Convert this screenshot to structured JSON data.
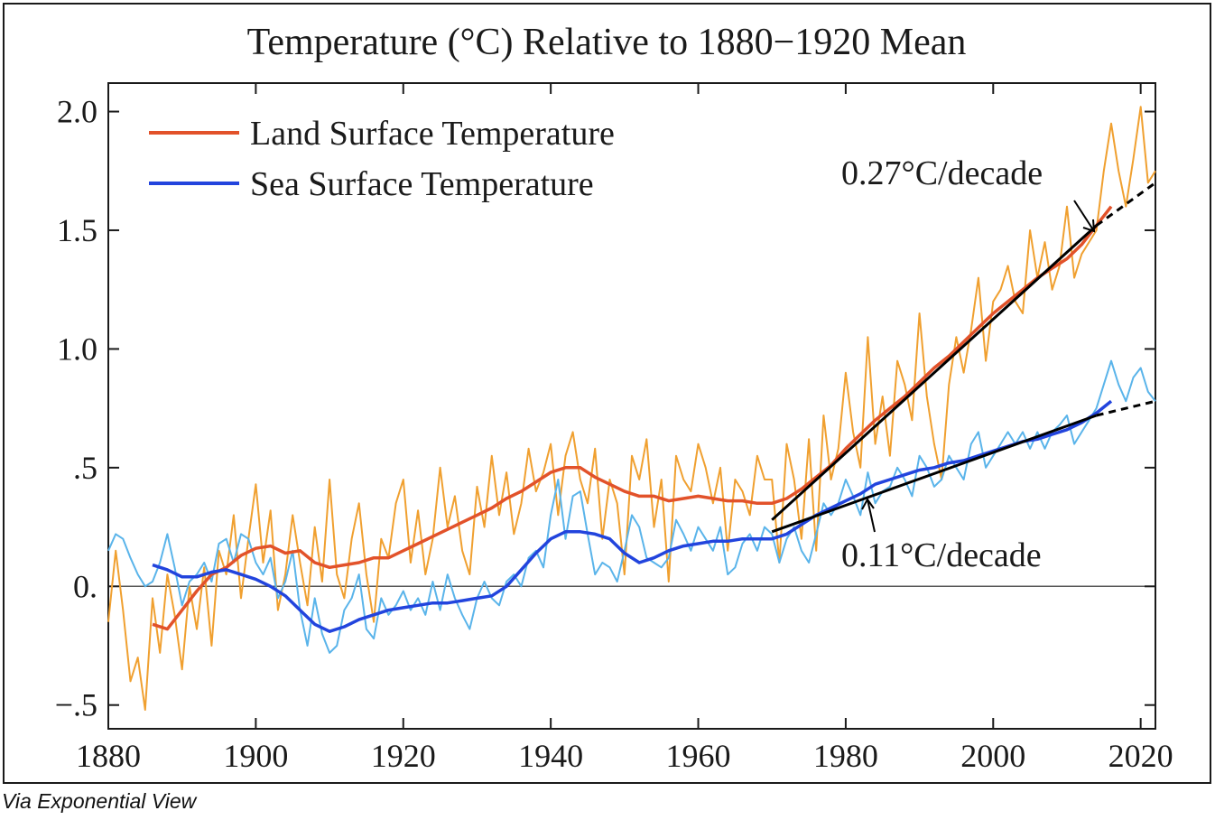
{
  "caption": "Via Exponential View",
  "chart_data": {
    "type": "line",
    "title": "Temperature (°C) Relative to 1880−1920 Mean",
    "xlabel": "",
    "ylabel": "",
    "xlim": [
      1880,
      2022
    ],
    "ylim": [
      -0.6,
      2.12
    ],
    "x_ticks": [
      1880,
      1900,
      1920,
      1940,
      1960,
      1980,
      2000,
      2020
    ],
    "x_tick_labels": [
      "1880",
      "1900",
      "1920",
      "1940",
      "1960",
      "1980",
      "2000",
      "2020"
    ],
    "y_ticks": [
      2.0,
      1.5,
      1.0,
      0.5,
      0.0,
      -0.5
    ],
    "y_tick_labels": [
      "2.0",
      "1.5",
      "1.0",
      ".5",
      "0.",
      "−.5"
    ],
    "legend_position": "top-left",
    "legend": [
      {
        "label": "Land Surface Temperature",
        "color": "#e2522a"
      },
      {
        "label": "Sea Surface Temperature",
        "color": "#2244dd"
      }
    ],
    "colors": {
      "land_monthly": "#f0a030",
      "land_smooth": "#e2522a",
      "sea_monthly": "#5ab4ea",
      "sea_smooth": "#2244dd",
      "trend": "#000000",
      "zero_line": "#555555"
    },
    "series": [
      {
        "name": "Land Surface Temperature (monthly/annual)",
        "color": "#f0a030",
        "x": [
          1880,
          1881,
          1882,
          1883,
          1884,
          1885,
          1886,
          1887,
          1888,
          1889,
          1890,
          1891,
          1892,
          1893,
          1894,
          1895,
          1896,
          1897,
          1898,
          1899,
          1900,
          1901,
          1902,
          1903,
          1904,
          1905,
          1906,
          1907,
          1908,
          1909,
          1910,
          1911,
          1912,
          1913,
          1914,
          1915,
          1916,
          1917,
          1918,
          1919,
          1920,
          1921,
          1922,
          1923,
          1924,
          1925,
          1926,
          1927,
          1928,
          1929,
          1930,
          1931,
          1932,
          1933,
          1934,
          1935,
          1936,
          1937,
          1938,
          1939,
          1940,
          1941,
          1942,
          1943,
          1944,
          1945,
          1946,
          1947,
          1948,
          1949,
          1950,
          1951,
          1952,
          1953,
          1954,
          1955,
          1956,
          1957,
          1958,
          1959,
          1960,
          1961,
          1962,
          1963,
          1964,
          1965,
          1966,
          1967,
          1968,
          1969,
          1970,
          1971,
          1972,
          1973,
          1974,
          1975,
          1976,
          1977,
          1978,
          1979,
          1980,
          1981,
          1982,
          1983,
          1984,
          1985,
          1986,
          1987,
          1988,
          1989,
          1990,
          1991,
          1992,
          1993,
          1994,
          1995,
          1996,
          1997,
          1998,
          1999,
          2000,
          2001,
          2002,
          2003,
          2004,
          2005,
          2006,
          2007,
          2008,
          2009,
          2010,
          2011,
          2012,
          2013,
          2014,
          2015,
          2016,
          2017,
          2018,
          2019,
          2020,
          2021,
          2022
        ],
        "values": [
          -0.15,
          0.15,
          -0.1,
          -0.4,
          -0.3,
          -0.52,
          -0.05,
          -0.28,
          0.05,
          -0.12,
          -0.35,
          0.0,
          -0.18,
          0.08,
          -0.25,
          0.15,
          0.05,
          0.3,
          -0.05,
          0.2,
          0.43,
          0.1,
          0.32,
          -0.1,
          0.05,
          0.3,
          0.1,
          -0.08,
          0.25,
          0.02,
          0.45,
          0.05,
          -0.05,
          0.2,
          0.35,
          0.05,
          -0.15,
          0.2,
          0.12,
          0.35,
          0.45,
          0.1,
          0.32,
          0.05,
          0.2,
          0.5,
          0.25,
          0.38,
          0.15,
          0.05,
          0.42,
          0.25,
          0.55,
          0.3,
          0.48,
          0.22,
          0.35,
          0.58,
          0.4,
          0.48,
          0.6,
          0.3,
          0.55,
          0.65,
          0.45,
          0.35,
          0.58,
          0.2,
          0.45,
          0.35,
          0.05,
          0.55,
          0.45,
          0.62,
          0.25,
          0.45,
          0.02,
          0.55,
          0.45,
          0.4,
          0.6,
          0.5,
          0.35,
          0.5,
          0.15,
          0.45,
          0.4,
          0.3,
          0.55,
          0.45,
          0.45,
          0.1,
          0.6,
          0.45,
          0.2,
          0.62,
          0.15,
          0.72,
          0.45,
          0.58,
          0.9,
          0.65,
          0.5,
          1.05,
          0.6,
          0.8,
          0.55,
          0.95,
          0.85,
          0.7,
          1.15,
          0.8,
          0.6,
          0.45,
          0.85,
          1.05,
          0.9,
          1.08,
          1.3,
          0.95,
          1.2,
          1.25,
          1.35,
          1.2,
          1.15,
          1.5,
          1.3,
          1.45,
          1.25,
          1.35,
          1.6,
          1.3,
          1.4,
          1.45,
          1.5,
          1.75,
          1.95,
          1.75,
          1.6,
          1.8,
          2.02,
          1.7,
          1.75
        ]
      },
      {
        "name": "Land Surface Temperature",
        "color": "#e2522a",
        "x": [
          1886,
          1888,
          1890,
          1892,
          1894,
          1896,
          1898,
          1900,
          1902,
          1904,
          1906,
          1908,
          1910,
          1912,
          1914,
          1916,
          1918,
          1920,
          1922,
          1924,
          1926,
          1928,
          1930,
          1932,
          1934,
          1936,
          1938,
          1940,
          1942,
          1944,
          1946,
          1948,
          1950,
          1952,
          1954,
          1956,
          1958,
          1960,
          1962,
          1964,
          1966,
          1968,
          1970,
          1972,
          1974,
          1976,
          1978,
          1980,
          1982,
          1984,
          1986,
          1988,
          1990,
          1992,
          1994,
          1996,
          1998,
          2000,
          2002,
          2004,
          2006,
          2008,
          2010,
          2012,
          2014,
          2016
        ],
        "values": [
          -0.16,
          -0.18,
          -0.1,
          -0.02,
          0.05,
          0.08,
          0.13,
          0.16,
          0.17,
          0.14,
          0.15,
          0.1,
          0.08,
          0.09,
          0.1,
          0.12,
          0.12,
          0.15,
          0.18,
          0.21,
          0.24,
          0.27,
          0.3,
          0.33,
          0.37,
          0.4,
          0.44,
          0.48,
          0.5,
          0.5,
          0.46,
          0.43,
          0.4,
          0.38,
          0.38,
          0.36,
          0.37,
          0.38,
          0.37,
          0.36,
          0.36,
          0.35,
          0.35,
          0.37,
          0.41,
          0.46,
          0.51,
          0.58,
          0.64,
          0.7,
          0.75,
          0.8,
          0.86,
          0.92,
          0.97,
          1.03,
          1.09,
          1.15,
          1.2,
          1.25,
          1.3,
          1.34,
          1.38,
          1.44,
          1.52,
          1.6
        ]
      },
      {
        "name": "Sea Surface Temperature (monthly/annual)",
        "color": "#5ab4ea",
        "x": [
          1880,
          1881,
          1882,
          1883,
          1884,
          1885,
          1886,
          1887,
          1888,
          1889,
          1890,
          1891,
          1892,
          1893,
          1894,
          1895,
          1896,
          1897,
          1898,
          1899,
          1900,
          1901,
          1902,
          1903,
          1904,
          1905,
          1906,
          1907,
          1908,
          1909,
          1910,
          1911,
          1912,
          1913,
          1914,
          1915,
          1916,
          1917,
          1918,
          1919,
          1920,
          1921,
          1922,
          1923,
          1924,
          1925,
          1926,
          1927,
          1928,
          1929,
          1930,
          1931,
          1932,
          1933,
          1934,
          1935,
          1936,
          1937,
          1938,
          1939,
          1940,
          1941,
          1942,
          1943,
          1944,
          1945,
          1946,
          1947,
          1948,
          1949,
          1950,
          1951,
          1952,
          1953,
          1954,
          1955,
          1956,
          1957,
          1958,
          1959,
          1960,
          1961,
          1962,
          1963,
          1964,
          1965,
          1966,
          1967,
          1968,
          1969,
          1970,
          1971,
          1972,
          1973,
          1974,
          1975,
          1976,
          1977,
          1978,
          1979,
          1980,
          1981,
          1982,
          1983,
          1984,
          1985,
          1986,
          1987,
          1988,
          1989,
          1990,
          1991,
          1992,
          1993,
          1994,
          1995,
          1996,
          1997,
          1998,
          1999,
          2000,
          2001,
          2002,
          2003,
          2004,
          2005,
          2006,
          2007,
          2008,
          2009,
          2010,
          2011,
          2012,
          2013,
          2014,
          2015,
          2016,
          2017,
          2018,
          2019,
          2020,
          2021,
          2022
        ],
        "values": [
          0.15,
          0.22,
          0.2,
          0.12,
          0.05,
          0.0,
          0.02,
          0.1,
          0.22,
          0.08,
          -0.08,
          0.02,
          0.05,
          0.1,
          0.02,
          0.18,
          0.2,
          0.1,
          0.22,
          0.2,
          0.1,
          0.05,
          0.12,
          -0.05,
          0.02,
          0.15,
          -0.1,
          -0.25,
          -0.05,
          -0.2,
          -0.28,
          -0.25,
          -0.1,
          -0.05,
          0.05,
          -0.18,
          -0.22,
          -0.05,
          -0.12,
          -0.08,
          -0.02,
          -0.1,
          -0.05,
          -0.12,
          0.02,
          -0.1,
          0.05,
          -0.05,
          -0.12,
          -0.18,
          -0.05,
          0.02,
          -0.05,
          -0.08,
          0.02,
          0.05,
          0.0,
          0.12,
          0.15,
          0.08,
          0.3,
          0.45,
          0.2,
          0.38,
          0.4,
          0.22,
          0.05,
          0.1,
          0.08,
          0.02,
          0.15,
          0.3,
          0.25,
          0.12,
          0.1,
          0.08,
          0.12,
          0.28,
          0.22,
          0.15,
          0.25,
          0.2,
          0.15,
          0.25,
          0.05,
          0.08,
          0.18,
          0.22,
          0.15,
          0.25,
          0.22,
          0.1,
          0.2,
          0.25,
          0.15,
          0.1,
          0.22,
          0.35,
          0.3,
          0.35,
          0.45,
          0.38,
          0.3,
          0.48,
          0.35,
          0.4,
          0.42,
          0.5,
          0.45,
          0.38,
          0.55,
          0.5,
          0.42,
          0.45,
          0.55,
          0.5,
          0.45,
          0.6,
          0.65,
          0.5,
          0.55,
          0.6,
          0.65,
          0.6,
          0.65,
          0.58,
          0.65,
          0.58,
          0.65,
          0.68,
          0.72,
          0.6,
          0.65,
          0.7,
          0.75,
          0.85,
          0.95,
          0.85,
          0.78,
          0.88,
          0.92,
          0.82,
          0.78
        ]
      },
      {
        "name": "Sea Surface Temperature",
        "color": "#2244dd",
        "x": [
          1886,
          1888,
          1890,
          1892,
          1894,
          1896,
          1898,
          1900,
          1902,
          1904,
          1906,
          1908,
          1910,
          1912,
          1914,
          1916,
          1918,
          1920,
          1922,
          1924,
          1926,
          1928,
          1930,
          1932,
          1934,
          1936,
          1938,
          1940,
          1942,
          1944,
          1946,
          1948,
          1950,
          1952,
          1954,
          1956,
          1958,
          1960,
          1962,
          1964,
          1966,
          1968,
          1970,
          1972,
          1974,
          1976,
          1978,
          1980,
          1982,
          1984,
          1986,
          1988,
          1990,
          1992,
          1994,
          1996,
          1998,
          2000,
          2002,
          2004,
          2006,
          2008,
          2010,
          2012,
          2014,
          2016
        ],
        "values": [
          0.09,
          0.07,
          0.04,
          0.04,
          0.06,
          0.07,
          0.05,
          0.03,
          0.0,
          -0.04,
          -0.1,
          -0.16,
          -0.19,
          -0.17,
          -0.14,
          -0.12,
          -0.1,
          -0.09,
          -0.08,
          -0.07,
          -0.07,
          -0.06,
          -0.05,
          -0.04,
          0.0,
          0.07,
          0.14,
          0.2,
          0.23,
          0.23,
          0.22,
          0.2,
          0.14,
          0.1,
          0.12,
          0.15,
          0.17,
          0.18,
          0.19,
          0.19,
          0.2,
          0.2,
          0.2,
          0.22,
          0.26,
          0.3,
          0.33,
          0.36,
          0.39,
          0.43,
          0.45,
          0.47,
          0.49,
          0.5,
          0.52,
          0.53,
          0.55,
          0.57,
          0.59,
          0.61,
          0.62,
          0.64,
          0.66,
          0.69,
          0.73,
          0.78
        ]
      }
    ],
    "trends": [
      {
        "label": "0.27°C/decade",
        "rate_per_decade": 0.27,
        "x": [
          1970,
          2014
        ],
        "values": [
          0.28,
          1.52
        ],
        "extension_x": [
          2014,
          2022
        ],
        "extension_values": [
          1.52,
          1.7
        ]
      },
      {
        "label": "0.11°C/decade",
        "rate_per_decade": 0.11,
        "x": [
          1970,
          2014
        ],
        "values": [
          0.23,
          0.72
        ],
        "extension_x": [
          2014,
          2022
        ],
        "extension_values": [
          0.72,
          0.78
        ]
      }
    ]
  }
}
